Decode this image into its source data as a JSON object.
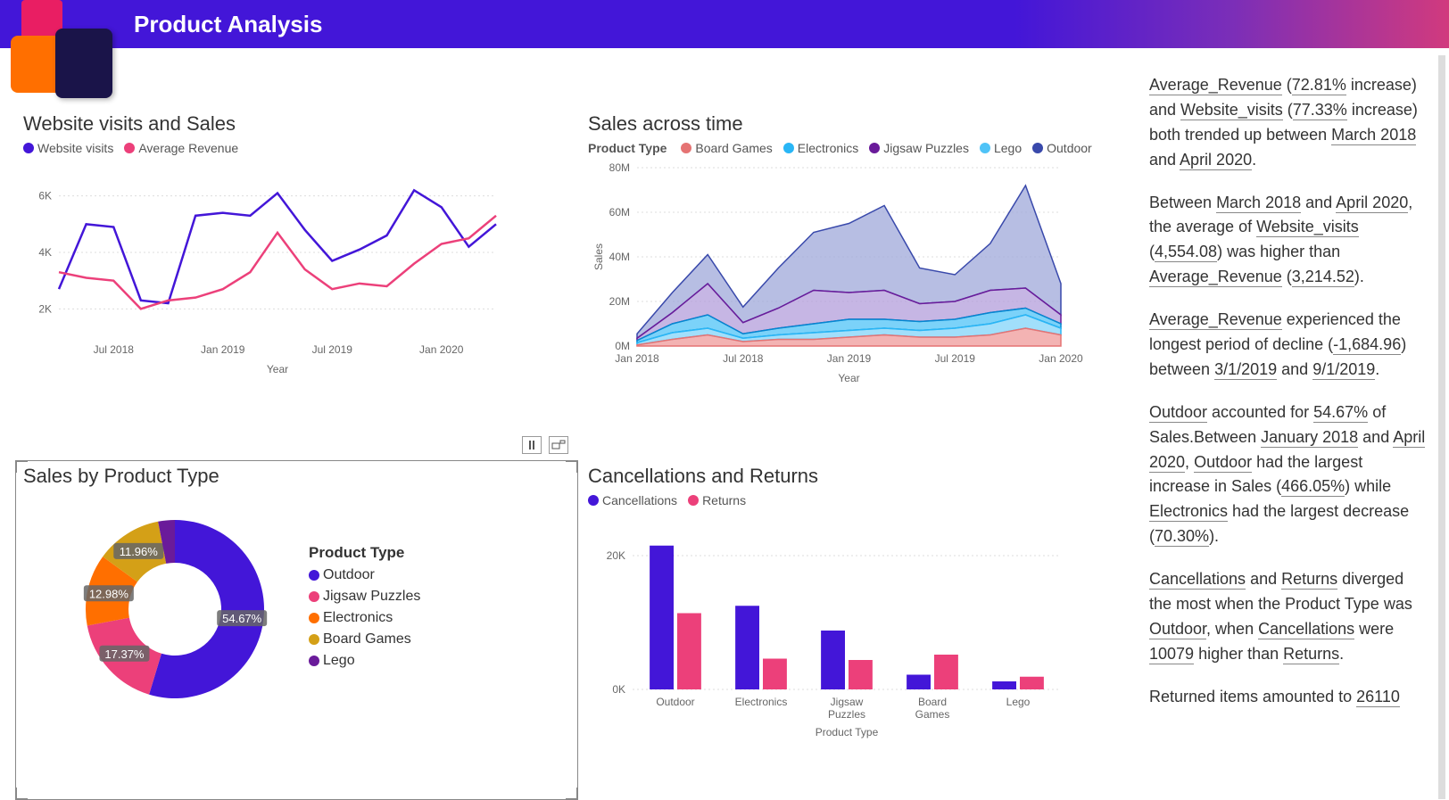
{
  "header": {
    "title": "Product Analysis"
  },
  "colors": {
    "purple": "#4316d8",
    "pink": "#e91e63",
    "magenta": "#ec407a",
    "orange": "#ff6f00",
    "gold": "#d4a017",
    "darkpurple": "#6a1b9a",
    "lightblue": "#29b6f6",
    "blue": "#3949ab",
    "red": "#e57373",
    "areaPurple": "#9fa8da"
  },
  "chart1": {
    "title": "Website visits and Sales",
    "legend": [
      "Website visits",
      "Average Revenue"
    ],
    "legend_colors": [
      "#4316d8",
      "#ec407a"
    ],
    "x_labels": [
      "Jul 2018",
      "Jan 2019",
      "Jul 2019",
      "Jan 2020"
    ],
    "x_axis": "Year",
    "y_ticks": [
      "2K",
      "4K",
      "6K"
    ],
    "ylim": [
      1000,
      7000
    ],
    "series1": [
      2700,
      5000,
      4900,
      2300,
      2200,
      5300,
      5400,
      5300,
      6100,
      4800,
      3700,
      4100,
      4600,
      6200,
      5600,
      4200,
      5000
    ],
    "series2": [
      3300,
      3100,
      3000,
      2000,
      2300,
      2400,
      2700,
      3300,
      4700,
      3400,
      2700,
      2900,
      2800,
      3600,
      4300,
      4500,
      5300
    ]
  },
  "chart2": {
    "title": "Sales across time",
    "legend_title": "Product Type",
    "legend": [
      "Board Games",
      "Electronics",
      "Jigsaw Puzzles",
      "Lego",
      "Outdoor"
    ],
    "legend_colors": [
      "#e57373",
      "#29b6f6",
      "#6a1b9a",
      "#4fc3f7",
      "#3949ab"
    ],
    "x_labels": [
      "Jan 2018",
      "Jul 2018",
      "Jan 2019",
      "Jul 2019",
      "Jan 2020"
    ],
    "x_axis": "Year",
    "y_axis": "Sales",
    "y_ticks": [
      "0M",
      "20M",
      "40M",
      "60M",
      "80M"
    ],
    "ylim": [
      0,
      80
    ],
    "stack": {
      "board": [
        0.5,
        3,
        5,
        2,
        3,
        3,
        4,
        5,
        4,
        4,
        5,
        8,
        5
      ],
      "lego": [
        1,
        3,
        3,
        1.5,
        2,
        3,
        3,
        3,
        3,
        4,
        5,
        6,
        3
      ],
      "elec": [
        1,
        4,
        6,
        2,
        3,
        4,
        5,
        4,
        4,
        4,
        5,
        3,
        2
      ],
      "jigsaw": [
        1,
        5,
        14,
        5,
        9,
        15,
        12,
        13,
        8,
        8,
        10,
        9,
        4
      ],
      "outdoor": [
        2,
        9,
        13,
        7,
        18,
        26,
        31,
        38,
        16,
        12,
        21,
        46,
        14
      ]
    }
  },
  "chart3": {
    "title": "Sales by Product Type",
    "legend_title": "Product Type",
    "slices": [
      {
        "label": "Outdoor",
        "pct": 54.67,
        "color": "#4316d8"
      },
      {
        "label": "Jigsaw Puzzles",
        "pct": 17.37,
        "color": "#ec407a"
      },
      {
        "label": "Electronics",
        "pct": 12.98,
        "color": "#ff6f00"
      },
      {
        "label": "Board Games",
        "pct": 11.96,
        "color": "#d4a017"
      },
      {
        "label": "Lego",
        "pct": 3.02,
        "color": "#6a1b9a"
      }
    ]
  },
  "chart4": {
    "title": "Cancellations and Returns",
    "legend": [
      "Cancellations",
      "Returns"
    ],
    "legend_colors": [
      "#4316d8",
      "#ec407a"
    ],
    "y_ticks": [
      "0K",
      "20K"
    ],
    "ylim": [
      0,
      24000
    ],
    "x_axis": "Product Type",
    "categories": [
      "Outdoor",
      "Electronics",
      "Jigsaw Puzzles",
      "Board Games",
      "Lego"
    ],
    "cancellations": [
      21500,
      12500,
      8800,
      2200,
      1200
    ],
    "returns": [
      11400,
      4600,
      4400,
      5200,
      1900
    ]
  },
  "insights": {
    "p1": {
      "a": "Average_Revenue",
      "b": "72.81%",
      "c": "Website_visits",
      "d": "77.33%",
      "e": "March 2018",
      "f": "April 2020"
    },
    "p2": {
      "a": "March 2018",
      "b": "April 2020",
      "c": "Website_visits",
      "d": "4,554.08",
      "e": "Average_Revenue",
      "f": "3,214.52"
    },
    "p3": {
      "a": "Average_Revenue",
      "b": "-1,684.96",
      "c": "3/1/2019",
      "d": "9/1/2019"
    },
    "p4": {
      "a": "Outdoor",
      "b": "54.67%",
      "c": "January 2018",
      "d": "April 2020",
      "e": "Outdoor",
      "f": "466.05%",
      "g": "Electronics",
      "h": "70.30%"
    },
    "p5": {
      "a": "Cancellations",
      "b": "Returns",
      "c": "Outdoor",
      "d": "Cancellations",
      "e": "10079",
      "f": "Returns"
    },
    "p6": {
      "a": "26110"
    }
  }
}
